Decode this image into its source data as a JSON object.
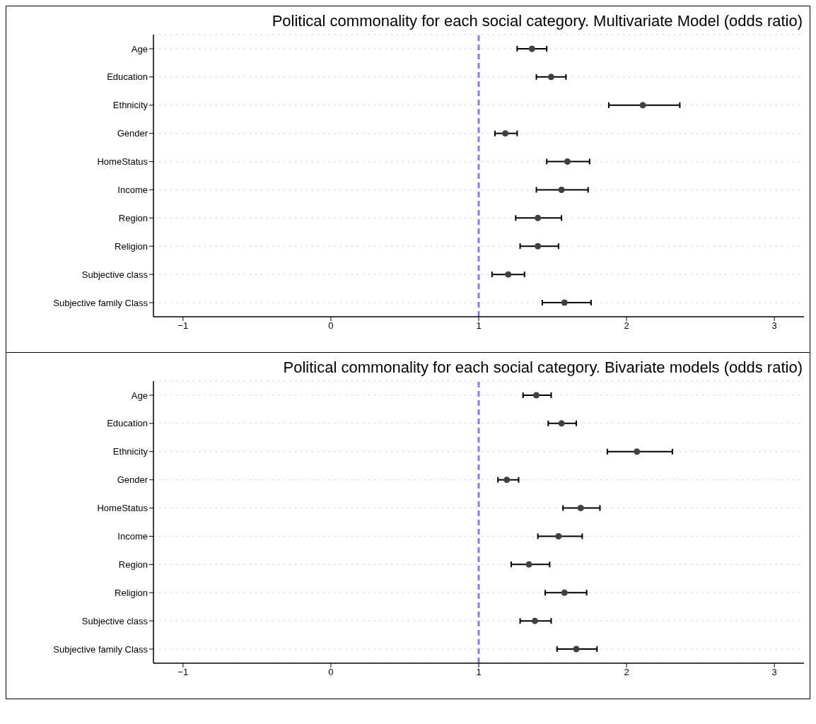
{
  "chart_data": [
    {
      "type": "scatter",
      "title": "Political commonality for each social category. Multivariate Model (odds ratio)",
      "orientation": "horizontal",
      "categories": [
        "Age",
        "Education",
        "Ethnicity",
        "Gender",
        "HomeStatus",
        "Income",
        "Region",
        "Religion",
        "Subjective class",
        "Subjective family Class"
      ],
      "series": [
        {
          "color": "#404040",
          "values": [
            1.36,
            1.49,
            2.11,
            1.18,
            1.6,
            1.56,
            1.4,
            1.4,
            1.2,
            1.58
          ],
          "errors": [
            [
              1.26,
              1.46
            ],
            [
              1.39,
              1.59
            ],
            [
              1.88,
              2.36
            ],
            [
              1.11,
              1.26
            ],
            [
              1.46,
              1.75
            ],
            [
              1.39,
              1.74
            ],
            [
              1.25,
              1.56
            ],
            [
              1.28,
              1.54
            ],
            [
              1.09,
              1.31
            ],
            [
              1.43,
              1.76
            ]
          ]
        }
      ],
      "xlim": [
        -1.2,
        3.2
      ],
      "xticks": [
        {
          "value": -1,
          "label": "−1"
        },
        0,
        1,
        2,
        3
      ],
      "ref_lines": [
        {
          "axis": "x",
          "value": 1,
          "color": "#8080f0",
          "line_style": "dashed"
        }
      ],
      "grid": "y",
      "marker": "circle"
    },
    {
      "type": "scatter",
      "title": "Political commonality for each social category. Bivariate models (odds ratio)",
      "orientation": "horizontal",
      "categories": [
        "Age",
        "Education",
        "Ethnicity",
        "Gender",
        "HomeStatus",
        "Income",
        "Region",
        "Religion",
        "Subjective class",
        "Subjective family Class"
      ],
      "series": [
        {
          "color": "#404040",
          "values": [
            1.39,
            1.56,
            2.07,
            1.19,
            1.69,
            1.54,
            1.34,
            1.58,
            1.38,
            1.66
          ],
          "errors": [
            [
              1.3,
              1.49
            ],
            [
              1.47,
              1.66
            ],
            [
              1.87,
              2.31
            ],
            [
              1.13,
              1.27
            ],
            [
              1.57,
              1.82
            ],
            [
              1.4,
              1.7
            ],
            [
              1.22,
              1.48
            ],
            [
              1.45,
              1.73
            ],
            [
              1.28,
              1.49
            ],
            [
              1.53,
              1.8
            ]
          ]
        }
      ],
      "xlim": [
        -1.2,
        3.2
      ],
      "xticks": [
        {
          "value": -1,
          "label": "−1"
        },
        0,
        1,
        2,
        3
      ],
      "ref_lines": [
        {
          "axis": "x",
          "value": 1,
          "color": "#8080f0",
          "line_style": "dashed"
        }
      ],
      "grid": "y",
      "marker": "circle"
    }
  ]
}
